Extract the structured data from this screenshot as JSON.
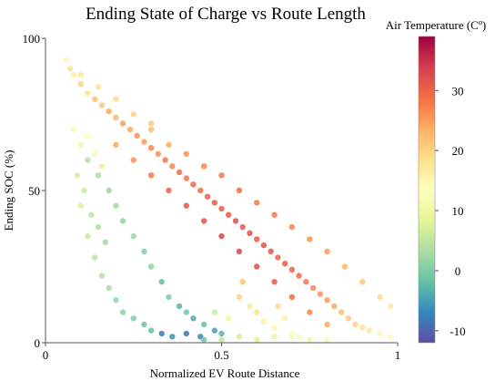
{
  "chart_data": {
    "type": "scatter",
    "title": "Ending State of Charge vs Route Length",
    "xlabel": "Normalized EV Route Distance",
    "ylabel": "Ending SOC (%)",
    "xlim": [
      0,
      1
    ],
    "ylim": [
      0,
      100
    ],
    "xticks": [
      {
        "value": 0,
        "label": "0"
      },
      {
        "value": 0.5,
        "label": "0.5"
      },
      {
        "value": 1,
        "label": "1"
      }
    ],
    "yticks": [
      {
        "value": 0,
        "label": "0"
      },
      {
        "value": 50,
        "label": "50"
      },
      {
        "value": 100,
        "label": "100"
      }
    ],
    "grid": false,
    "colorbar": {
      "label": "Air Temperature (Cº)",
      "range": [
        -12,
        39
      ],
      "ticks": [
        {
          "value": -10,
          "label": "-10"
        },
        {
          "value": 0,
          "label": "0"
        },
        {
          "value": 10,
          "label": "10"
        },
        {
          "value": 20,
          "label": "20"
        },
        {
          "value": 30,
          "label": "30"
        }
      ],
      "colormap": [
        "#5e4fa2",
        "#3288bd",
        "#66c2a5",
        "#abdda4",
        "#e6f598",
        "#ffffbf",
        "#fee08b",
        "#fdae61",
        "#f46d43",
        "#d53e4f",
        "#9e0142"
      ]
    },
    "points": [
      [
        0.06,
        93,
        15
      ],
      [
        0.07,
        90,
        18
      ],
      [
        0.08,
        88,
        16
      ],
      [
        0.1,
        85,
        20
      ],
      [
        0.12,
        82,
        18
      ],
      [
        0.14,
        80,
        22
      ],
      [
        0.16,
        78,
        21
      ],
      [
        0.18,
        76,
        24
      ],
      [
        0.2,
        74,
        23
      ],
      [
        0.22,
        72,
        25
      ],
      [
        0.24,
        70,
        24
      ],
      [
        0.26,
        68,
        26
      ],
      [
        0.28,
        66,
        25
      ],
      [
        0.3,
        64,
        27
      ],
      [
        0.32,
        62,
        26
      ],
      [
        0.34,
        60,
        28
      ],
      [
        0.36,
        58,
        27
      ],
      [
        0.38,
        56,
        29
      ],
      [
        0.4,
        54,
        28
      ],
      [
        0.42,
        52,
        30
      ],
      [
        0.44,
        50,
        29
      ],
      [
        0.46,
        48,
        30
      ],
      [
        0.48,
        46,
        31
      ],
      [
        0.5,
        44,
        30
      ],
      [
        0.52,
        42,
        31
      ],
      [
        0.54,
        40,
        32
      ],
      [
        0.56,
        38,
        31
      ],
      [
        0.58,
        36,
        32
      ],
      [
        0.6,
        34,
        31
      ],
      [
        0.62,
        32,
        32
      ],
      [
        0.64,
        30,
        31
      ],
      [
        0.66,
        28,
        30
      ],
      [
        0.68,
        26,
        31
      ],
      [
        0.7,
        24,
        30
      ],
      [
        0.72,
        22,
        29
      ],
      [
        0.74,
        20,
        28
      ],
      [
        0.76,
        18,
        27
      ],
      [
        0.78,
        16,
        26
      ],
      [
        0.8,
        14,
        25
      ],
      [
        0.82,
        12,
        24
      ],
      [
        0.84,
        10,
        22
      ],
      [
        0.86,
        8,
        21
      ],
      [
        0.88,
        6,
        20
      ],
      [
        0.9,
        5,
        18
      ],
      [
        0.92,
        4,
        17
      ],
      [
        0.95,
        3,
        15
      ],
      [
        0.98,
        2,
        14
      ],
      [
        0.2,
        65,
        24
      ],
      [
        0.25,
        60,
        26
      ],
      [
        0.3,
        55,
        28
      ],
      [
        0.35,
        50,
        30
      ],
      [
        0.4,
        45,
        31
      ],
      [
        0.45,
        40,
        32
      ],
      [
        0.5,
        35,
        33
      ],
      [
        0.55,
        30,
        33
      ],
      [
        0.6,
        25,
        32
      ],
      [
        0.65,
        20,
        31
      ],
      [
        0.7,
        15,
        29
      ],
      [
        0.75,
        10,
        27
      ],
      [
        0.8,
        6,
        24
      ],
      [
        0.12,
        60,
        4
      ],
      [
        0.15,
        55,
        3
      ],
      [
        0.18,
        50,
        2
      ],
      [
        0.2,
        45,
        3
      ],
      [
        0.22,
        40,
        1
      ],
      [
        0.25,
        35,
        2
      ],
      [
        0.28,
        30,
        0
      ],
      [
        0.3,
        25,
        1
      ],
      [
        0.33,
        20,
        -2
      ],
      [
        0.35,
        15,
        0
      ],
      [
        0.38,
        12,
        -3
      ],
      [
        0.4,
        10,
        -1
      ],
      [
        0.42,
        8,
        -4
      ],
      [
        0.45,
        6,
        -2
      ],
      [
        0.48,
        4,
        -5
      ],
      [
        0.5,
        3,
        -3
      ],
      [
        0.1,
        45,
        8
      ],
      [
        0.12,
        35,
        6
      ],
      [
        0.14,
        28,
        5
      ],
      [
        0.16,
        22,
        4
      ],
      [
        0.18,
        18,
        3
      ],
      [
        0.2,
        14,
        2
      ],
      [
        0.22,
        10,
        1
      ],
      [
        0.25,
        8,
        0
      ],
      [
        0.28,
        6,
        -1
      ],
      [
        0.3,
        4,
        -2
      ],
      [
        0.33,
        3,
        -8
      ],
      [
        0.36,
        2,
        -6
      ],
      [
        0.4,
        3,
        -9
      ],
      [
        0.44,
        2,
        -7
      ],
      [
        0.08,
        70,
        12
      ],
      [
        0.1,
        65,
        10
      ],
      [
        0.12,
        68,
        14
      ],
      [
        0.14,
        62,
        11
      ],
      [
        0.16,
        58,
        9
      ],
      [
        0.09,
        55,
        7
      ],
      [
        0.11,
        50,
        6
      ],
      [
        0.13,
        42,
        5
      ],
      [
        0.15,
        38,
        4
      ],
      [
        0.17,
        33,
        3
      ],
      [
        0.55,
        15,
        20
      ],
      [
        0.6,
        10,
        18
      ],
      [
        0.62,
        7,
        16
      ],
      [
        0.65,
        5,
        15
      ],
      [
        0.7,
        3,
        13
      ],
      [
        0.72,
        2,
        12
      ],
      [
        0.56,
        20,
        22
      ],
      [
        0.58,
        12,
        17
      ],
      [
        0.66,
        12,
        19
      ],
      [
        0.68,
        8,
        16
      ],
      [
        0.3,
        70,
        22
      ],
      [
        0.35,
        65,
        24
      ],
      [
        0.4,
        62,
        26
      ],
      [
        0.45,
        58,
        27
      ],
      [
        0.5,
        55,
        28
      ],
      [
        0.55,
        50,
        29
      ],
      [
        0.6,
        46,
        28
      ],
      [
        0.65,
        42,
        28
      ],
      [
        0.7,
        38,
        27
      ],
      [
        0.75,
        34,
        26
      ],
      [
        0.8,
        30,
        25
      ],
      [
        0.85,
        25,
        23
      ],
      [
        0.9,
        20,
        21
      ],
      [
        0.95,
        15,
        19
      ],
      [
        0.98,
        12,
        17
      ],
      [
        0.25,
        75,
        20
      ],
      [
        0.3,
        72,
        21
      ],
      [
        0.2,
        80,
        19
      ],
      [
        0.15,
        84,
        18
      ],
      [
        0.1,
        88,
        17
      ],
      [
        0.7,
        2,
        11
      ],
      [
        0.75,
        1,
        10
      ],
      [
        0.8,
        1,
        12
      ],
      [
        0.6,
        1,
        8
      ],
      [
        0.65,
        2,
        9
      ],
      [
        0.5,
        1,
        5
      ],
      [
        0.55,
        2,
        7
      ],
      [
        0.45,
        1,
        -1
      ],
      [
        0.52,
        8,
        10
      ],
      [
        0.48,
        10,
        6
      ]
    ]
  }
}
